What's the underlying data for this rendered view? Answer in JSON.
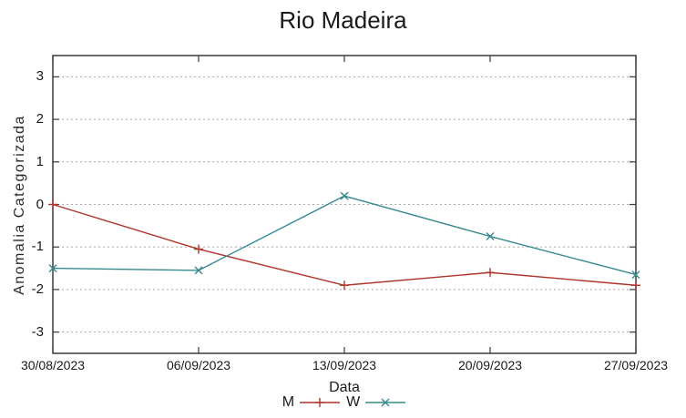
{
  "chart_data": {
    "type": "line",
    "title": "Rio Madeira",
    "xlabel": "Data",
    "ylabel": "Anomalia Categorizada",
    "categories": [
      "30/08/2023",
      "06/09/2023",
      "13/09/2023",
      "20/09/2023",
      "27/09/2023"
    ],
    "series": [
      {
        "name": "M",
        "marker": "plus",
        "color": "#ae352b",
        "values": [
          0,
          -1.05,
          -1.9,
          -1.6,
          -1.9
        ]
      },
      {
        "name": "W",
        "marker": "cross",
        "color": "#37898e",
        "values": [
          -1.5,
          -1.55,
          0.2,
          -0.75,
          -1.65
        ]
      }
    ],
    "ylim": [
      -3.5,
      3.5
    ],
    "yticks": [
      3,
      2,
      1,
      0,
      -1,
      -2,
      -3
    ],
    "grid": true,
    "grid_style": "dotted",
    "grid_color": "#a8a8a8",
    "axis_color": "#3a3a3a",
    "legend_position": "bottom-center"
  }
}
